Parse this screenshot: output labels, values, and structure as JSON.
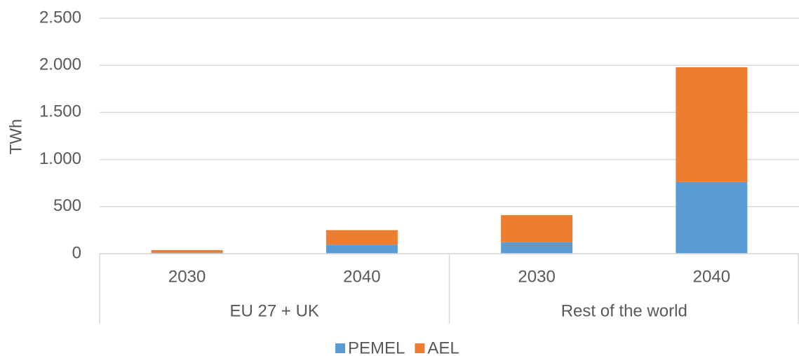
{
  "chart_data": {
    "type": "stacked_bar",
    "y_label": "TWh",
    "categories": [
      "2030",
      "2040",
      "2030",
      "2040"
    ],
    "groups": [
      "EU 27 + UK",
      "Rest of the world"
    ],
    "series": [
      {
        "name": "PEMEL",
        "color": "#5b9bd5",
        "values": [
          10,
          95,
          120,
          760
        ]
      },
      {
        "name": "AEL",
        "color": "#ed7d31",
        "values": [
          28,
          155,
          290,
          1220
        ]
      }
    ],
    "ylim": [
      0,
      2500
    ],
    "yticks": [
      0,
      500,
      {
        "value": 1000,
        "label": "1.000"
      },
      {
        "value": 1500,
        "label": "1.500"
      },
      {
        "value": 2000,
        "label": "2.000"
      },
      {
        "value": 2500,
        "label": "2.500"
      }
    ],
    "grid": true
  }
}
